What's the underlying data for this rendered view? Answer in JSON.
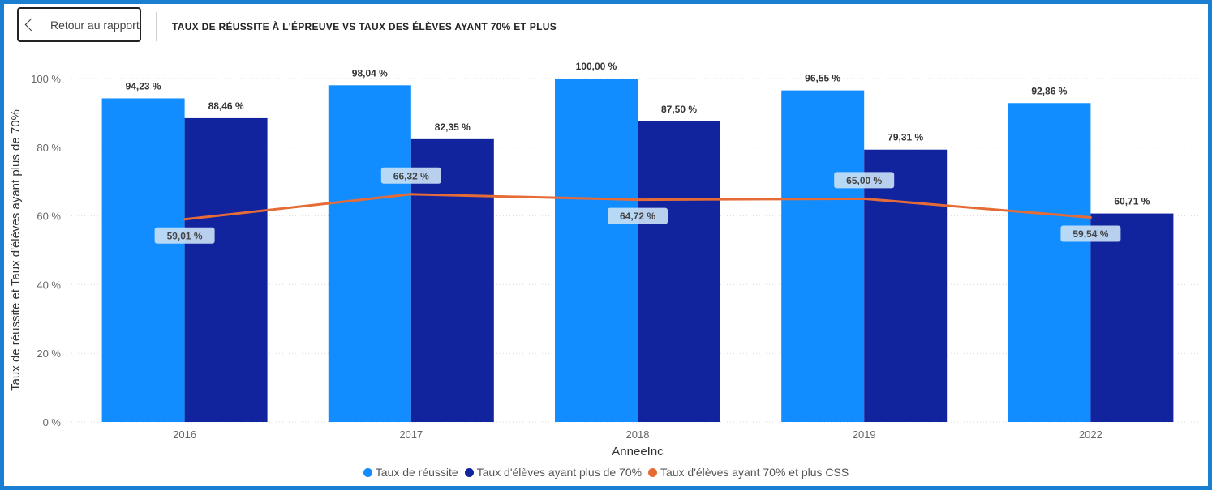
{
  "header": {
    "back_label": "Retour au rapport",
    "title": "TAUX DE RÉUSSITE À L'ÉPREUVE VS TAUX DES ÉLÈVES AYANT 70% ET PLUS"
  },
  "colors": {
    "series1": "#118dff",
    "series2": "#12239e",
    "series3": "#e66c37",
    "line_label_bg": "#c7e0f5",
    "text": "#333333",
    "grid": "#d9d9d9"
  },
  "chart_data": {
    "type": "bar",
    "categories": [
      "2016",
      "2017",
      "2018",
      "2019",
      "2022"
    ],
    "series": [
      {
        "name": "Taux de réussite",
        "kind": "bar",
        "values": [
          94.23,
          98.04,
          100.0,
          96.55,
          92.86
        ],
        "labels": [
          "94,23 %",
          "98,04 %",
          "100,00 %",
          "96,55 %",
          "92,86 %"
        ]
      },
      {
        "name": "Taux d'élèves ayant plus de 70%",
        "kind": "bar",
        "values": [
          88.46,
          82.35,
          87.5,
          79.31,
          60.71
        ],
        "labels": [
          "88,46 %",
          "82,35 %",
          "87,50 %",
          "79,31 %",
          "60,71 %"
        ]
      },
      {
        "name": "Taux d'élèves ayant 70% et plus CSS",
        "kind": "line",
        "values": [
          59.01,
          66.32,
          64.72,
          65.0,
          59.54
        ],
        "labels": [
          "59,01 %",
          "66,32 %",
          "64,72 %",
          "65,00 %",
          "59,54 %"
        ]
      }
    ],
    "xlabel": "AnneeInc",
    "ylabel": "Taux de réussite et Taux d'élèves ayant plus de 70%",
    "ylim": [
      0,
      100
    ],
    "yticks": [
      0,
      20,
      40,
      60,
      80,
      100
    ],
    "ytick_labels": [
      "0 %",
      "20 %",
      "40 %",
      "60 %",
      "80 %",
      "100 %"
    ],
    "grid": true,
    "legend": "bottom"
  }
}
